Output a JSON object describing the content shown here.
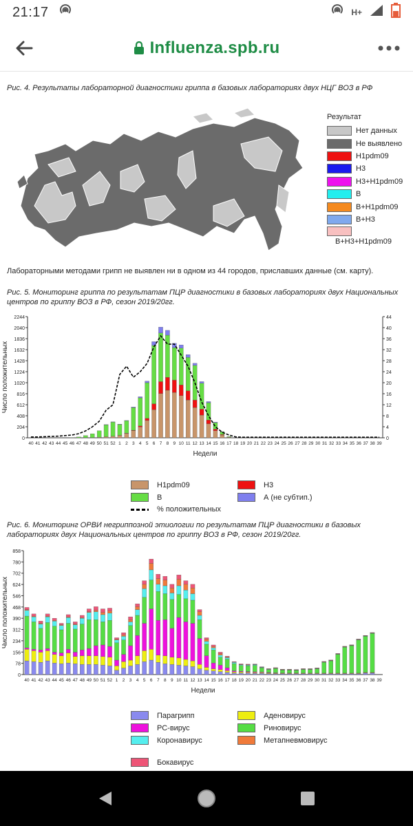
{
  "status": {
    "time": "21:17",
    "network": "H+"
  },
  "browser": {
    "url": "Influenza.spb.ru"
  },
  "fig4": {
    "caption": "Рис. 4. Результаты лабораторной диагностики гриппа в базовых лабораториях двух НЦГ ВОЗ в РФ",
    "legend_title": "Результат",
    "legend": [
      {
        "label": "Нет данных",
        "color": "#c8c8c8"
      },
      {
        "label": "Не выявлено",
        "color": "#6b6b6b"
      },
      {
        "label": "H1pdm09",
        "color": "#ee1111"
      },
      {
        "label": "H3",
        "color": "#1a1aee"
      },
      {
        "label": "H3+H1pdm09",
        "color": "#ee11ee"
      },
      {
        "label": "B",
        "color": "#22eeee"
      },
      {
        "label": "B+H1pdm09",
        "color": "#f58a1f"
      },
      {
        "label": "B+H3",
        "color": "#7fa9ee"
      },
      {
        "label": "B+H3+H1pdm09",
        "color": "#f8c0c0"
      }
    ],
    "note": "Лабораторными методами грипп не выявлен ни в одном из 44 городов, приславших данные  (см. карту)."
  },
  "fig5": {
    "caption": "Рис. 5. Мониторинг гриппа по результатам ПЦР диагностики в базовых лабораториях двух Национальных центров по гриппу ВОЗ в РФ, сезон 2019/20гг.",
    "legend": [
      {
        "label": "H1pdm09",
        "color": "#c8956a"
      },
      {
        "label": "H3",
        "color": "#ee1111"
      },
      {
        "label": "B",
        "color": "#66dd44"
      },
      {
        "label": "А (не субтип.)",
        "color": "#7f7fee"
      },
      {
        "label": "% положительных",
        "color": "#000000"
      }
    ]
  },
  "fig6": {
    "caption": "Рис. 6. Мониторинг ОРВИ негриппозной этиологии по результатам ПЦР диагностики в базовых лабораториях двух Национальных центров по гриппу ВОЗ в РФ, сезон 2019/20гг.",
    "legend": [
      {
        "label": "Парагрипп",
        "color": "#8a8aee"
      },
      {
        "label": "Аденовирус",
        "color": "#eeee11"
      },
      {
        "label": "РС-вирус",
        "color": "#ee11dd"
      },
      {
        "label": "Риновирус",
        "color": "#55dd44"
      },
      {
        "label": "Коронавирус",
        "color": "#55eeee"
      },
      {
        "label": "Метапневмовирус",
        "color": "#f07a3a"
      },
      {
        "label": "Бокавирус",
        "color": "#ee5577"
      }
    ]
  },
  "chart_data": [
    {
      "type": "bar",
      "stacked": true,
      "xlabel": "Недели",
      "ylabel": "Число положительных",
      "ylim": [
        0,
        2244
      ],
      "yticks": [
        0,
        204,
        408,
        612,
        816,
        1020,
        1224,
        1428,
        1632,
        1836,
        2040,
        2244
      ],
      "y2lim": [
        0,
        44
      ],
      "y2ticks": [
        0,
        4,
        8,
        12,
        16,
        20,
        24,
        28,
        32,
        36,
        40,
        44
      ],
      "categories": [
        "40",
        "41",
        "42",
        "43",
        "44",
        "45",
        "46",
        "47",
        "48",
        "49",
        "50",
        "51",
        "52",
        "1",
        "2",
        "3",
        "4",
        "5",
        "6",
        "7",
        "8",
        "9",
        "10",
        "11",
        "12",
        "13",
        "14",
        "15",
        "16",
        "17",
        "18",
        "19",
        "20",
        "21",
        "22",
        "23",
        "24",
        "25",
        "26",
        "27",
        "28",
        "29",
        "30",
        "31",
        "32",
        "33",
        "34",
        "35",
        "36",
        "37",
        "38",
        "39"
      ],
      "series": [
        {
          "name": "H1pdm09",
          "values": [
            0,
            0,
            0,
            0,
            0,
            0,
            0,
            0,
            2,
            5,
            10,
            20,
            30,
            45,
            80,
            130,
            200,
            320,
            520,
            820,
            880,
            840,
            780,
            700,
            560,
            420,
            260,
            130,
            50,
            10,
            0,
            0,
            0,
            0,
            0,
            0,
            0,
            0,
            0,
            0,
            0,
            0,
            0,
            0,
            0,
            0,
            0,
            0,
            0,
            0,
            0,
            0
          ]
        },
        {
          "name": "H3",
          "values": [
            0,
            0,
            0,
            0,
            0,
            0,
            0,
            0,
            0,
            0,
            0,
            0,
            0,
            2,
            5,
            10,
            20,
            40,
            110,
            220,
            240,
            230,
            200,
            170,
            140,
            110,
            70,
            30,
            10,
            2,
            0,
            0,
            0,
            0,
            0,
            0,
            0,
            0,
            0,
            0,
            0,
            0,
            0,
            0,
            0,
            0,
            0,
            0,
            0,
            0,
            0,
            0
          ]
        },
        {
          "name": "B",
          "values": [
            0,
            0,
            0,
            0,
            0,
            0,
            5,
            15,
            40,
            70,
            120,
            220,
            260,
            200,
            230,
            420,
            520,
            660,
            1080,
            900,
            780,
            600,
            680,
            620,
            640,
            480,
            320,
            120,
            50,
            10,
            0,
            0,
            0,
            0,
            0,
            0,
            0,
            0,
            0,
            0,
            0,
            0,
            0,
            0,
            0,
            0,
            0,
            0,
            0,
            0,
            0,
            0
          ]
        },
        {
          "name": "А (не субтип.)",
          "values": [
            0,
            0,
            0,
            0,
            0,
            0,
            0,
            0,
            0,
            0,
            0,
            5,
            5,
            5,
            5,
            10,
            20,
            30,
            70,
            110,
            90,
            80,
            60,
            50,
            40,
            30,
            20,
            10,
            5,
            0,
            0,
            0,
            0,
            0,
            0,
            0,
            0,
            0,
            0,
            0,
            0,
            0,
            0,
            0,
            0,
            0,
            0,
            0,
            0,
            0,
            0,
            0
          ]
        },
        {
          "name": "% положительных",
          "axis": "y2",
          "values": [
            0.3,
            0.3,
            0.4,
            0.5,
            0.6,
            0.8,
            1.0,
            1.5,
            2.5,
            4,
            6,
            10,
            12,
            23,
            26,
            22,
            24,
            27,
            33,
            37,
            34,
            34,
            30,
            26,
            20,
            13,
            8,
            4,
            2,
            1,
            0.3,
            0.2,
            0.2,
            0.2,
            0.2,
            0.2,
            0.2,
            0.2,
            0.2,
            0.2,
            0.2,
            0.2,
            0.2,
            0.2,
            0.2,
            0.2,
            0.2,
            0.2,
            0.2,
            0.2,
            0.2,
            0.2
          ]
        }
      ]
    },
    {
      "type": "bar",
      "stacked": true,
      "xlabel": "Недели",
      "ylabel": "Число положительных",
      "ylim": [
        0,
        858
      ],
      "yticks": [
        0,
        78,
        156,
        234,
        312,
        390,
        468,
        546,
        624,
        702,
        780,
        858
      ],
      "categories": [
        "40",
        "41",
        "42",
        "43",
        "44",
        "45",
        "46",
        "47",
        "48",
        "49",
        "50",
        "51",
        "52",
        "1",
        "2",
        "3",
        "4",
        "5",
        "6",
        "7",
        "8",
        "9",
        "10",
        "11",
        "12",
        "13",
        "14",
        "15",
        "16",
        "17",
        "18",
        "19",
        "20",
        "21",
        "22",
        "23",
        "24",
        "25",
        "26",
        "27",
        "28",
        "29",
        "30",
        "31",
        "32",
        "33",
        "34",
        "35",
        "36",
        "37",
        "38",
        "39"
      ],
      "series": [
        {
          "name": "Парагрипп",
          "values": [
            95,
            90,
            85,
            95,
            80,
            75,
            80,
            75,
            70,
            70,
            70,
            65,
            60,
            30,
            45,
            60,
            70,
            90,
            100,
            85,
            75,
            70,
            65,
            60,
            55,
            40,
            30,
            25,
            20,
            15,
            10,
            10,
            10,
            8,
            8,
            6,
            5,
            5,
            5,
            5,
            5,
            5,
            5,
            5,
            5,
            5,
            5,
            5,
            5,
            10,
            10,
            0
          ]
        },
        {
          "name": "Аденовирус",
          "values": [
            80,
            75,
            70,
            70,
            60,
            55,
            70,
            50,
            60,
            60,
            60,
            60,
            60,
            30,
            45,
            40,
            60,
            75,
            75,
            50,
            55,
            50,
            50,
            45,
            40,
            30,
            20,
            15,
            15,
            12,
            8,
            8,
            6,
            6,
            5,
            4,
            4,
            3,
            3,
            3,
            3,
            3,
            3,
            3,
            3,
            3,
            3,
            3,
            3,
            3,
            3,
            0
          ]
        },
        {
          "name": "РС-вирус",
          "values": [
            10,
            10,
            15,
            15,
            15,
            20,
            25,
            30,
            40,
            50,
            70,
            80,
            75,
            40,
            50,
            100,
            140,
            190,
            280,
            240,
            250,
            200,
            280,
            260,
            260,
            180,
            80,
            40,
            30,
            20,
            8,
            5,
            5,
            5,
            4,
            4,
            3,
            3,
            3,
            3,
            2,
            2,
            2,
            2,
            2,
            2,
            2,
            2,
            2,
            2,
            2,
            0
          ]
        },
        {
          "name": "Риновирус",
          "values": [
            220,
            190,
            150,
            180,
            180,
            160,
            180,
            160,
            180,
            200,
            180,
            160,
            180,
            120,
            100,
            140,
            140,
            180,
            200,
            200,
            180,
            200,
            160,
            160,
            160,
            130,
            80,
            90,
            55,
            60,
            50,
            40,
            40,
            45,
            30,
            20,
            30,
            20,
            20,
            18,
            25,
            25,
            30,
            75,
            85,
            130,
            180,
            190,
            230,
            250,
            270,
            0
          ]
        },
        {
          "name": "Коронавирус",
          "values": [
            40,
            35,
            30,
            40,
            35,
            30,
            40,
            30,
            40,
            50,
            55,
            50,
            50,
            20,
            25,
            25,
            40,
            60,
            70,
            50,
            55,
            45,
            60,
            60,
            45,
            30,
            20,
            15,
            15,
            10,
            8,
            5,
            5,
            5,
            3,
            3,
            2,
            2,
            2,
            2,
            2,
            2,
            2,
            2,
            2,
            2,
            2,
            2,
            2,
            2,
            2,
            0
          ]
        },
        {
          "name": "Метапневмовирус",
          "values": [
            5,
            5,
            5,
            5,
            5,
            5,
            5,
            5,
            5,
            5,
            10,
            15,
            15,
            5,
            10,
            15,
            20,
            30,
            45,
            40,
            40,
            35,
            45,
            40,
            40,
            25,
            15,
            10,
            10,
            5,
            3,
            3,
            3,
            2,
            2,
            2,
            2,
            2,
            2,
            2,
            2,
            2,
            2,
            2,
            2,
            2,
            2,
            2,
            2,
            2,
            2,
            0
          ]
        },
        {
          "name": "Бокавирус",
          "values": [
            15,
            15,
            15,
            15,
            15,
            10,
            15,
            15,
            15,
            20,
            25,
            25,
            20,
            10,
            15,
            20,
            20,
            25,
            30,
            30,
            25,
            25,
            30,
            25,
            25,
            15,
            10,
            10,
            10,
            5,
            3,
            3,
            3,
            2,
            2,
            2,
            2,
            2,
            2,
            2,
            2,
            2,
            2,
            2,
            2,
            2,
            2,
            2,
            2,
            2,
            2,
            0
          ]
        }
      ]
    }
  ]
}
